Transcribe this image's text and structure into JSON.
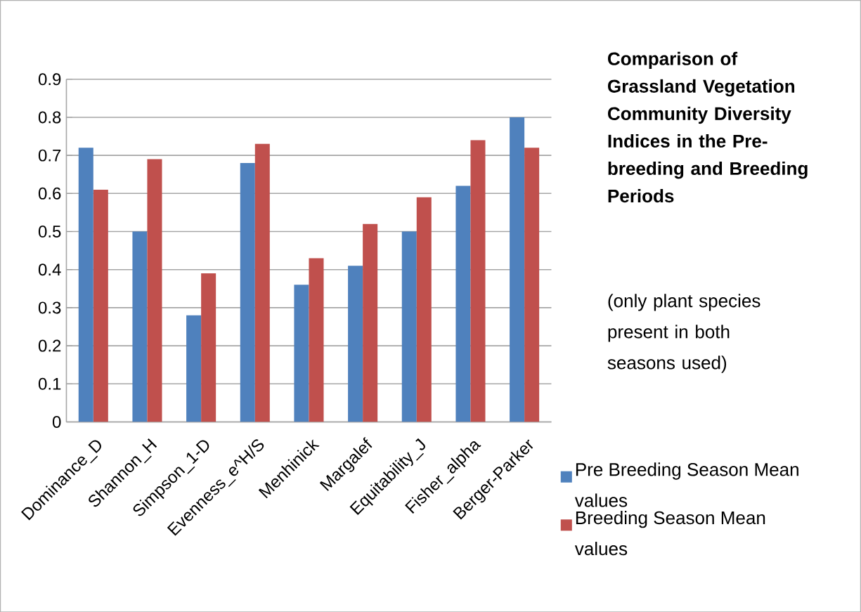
{
  "chart_data": {
    "type": "bar",
    "title": "Comparison of Grassland Vegetation Community Diversity Indices in the Pre-breeding and Breeding Periods",
    "subtitle": "(only plant species present in both seasons used)",
    "categories": [
      "Dominance_D",
      "Shannon_H",
      "Simpson_1-D",
      "Evenness_e^H/S",
      "Menhinick",
      "Margalef",
      "Equitability_J",
      "Fisher_alpha",
      "Berger-Parker"
    ],
    "series": [
      {
        "name": "Pre Breeding Season Mean values",
        "color": "#4f81bd",
        "values": [
          0.72,
          0.5,
          0.28,
          0.68,
          0.36,
          0.41,
          0.5,
          0.62,
          0.8
        ]
      },
      {
        "name": "Breeding Season Mean values",
        "color": "#c0504d",
        "values": [
          0.61,
          0.69,
          0.39,
          0.73,
          0.43,
          0.52,
          0.59,
          0.74,
          0.72
        ]
      }
    ],
    "ylim": [
      0,
      0.9
    ],
    "yticks": [
      0,
      0.1,
      0.2,
      0.3,
      0.4,
      0.5,
      0.6,
      0.7,
      0.8,
      0.9
    ],
    "grid": "y",
    "legend": "right"
  }
}
